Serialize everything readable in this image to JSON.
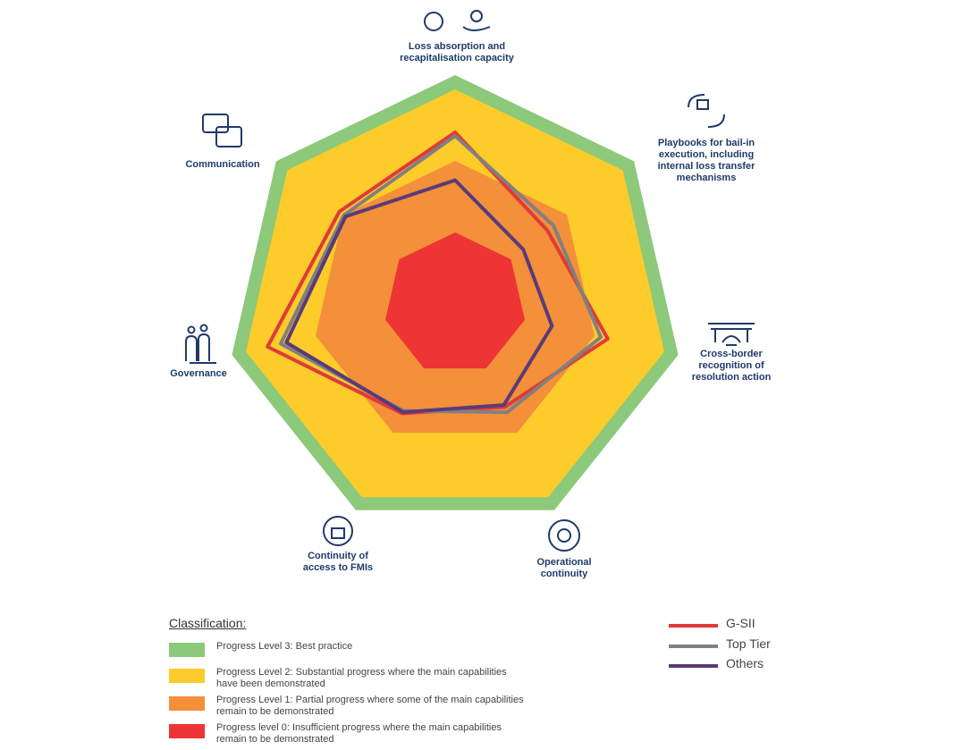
{
  "chart_data": {
    "type": "radar",
    "categories": [
      "Loss absorption and recapitalisation capacity",
      "Playbooks for bail-in execution, including internal loss transfer mechanisms",
      "Cross-border recognition of resolution action",
      "Operational continuity",
      "Continuity of access to FMIs",
      "Governance",
      "Communication"
    ],
    "rlim": [
      0,
      3.2
    ],
    "legend_title": "Classification:",
    "bands": [
      {
        "name": "Progress Level 3: Best practice",
        "color": "#8cc97a",
        "outer": 3.2
      },
      {
        "name": "Progress Level 2: Substantial progress where the main capabilities have been demonstrated",
        "color": "#fdcb2a",
        "outer": 3
      },
      {
        "name": "Progress Level 1: Partial progress where some of the main capabilities remain to be demonstrated",
        "color": "#f48f3a",
        "outer": 2
      },
      {
        "name": "Progress level 0: Insufficient progress where the main capabilities remain to be demonstrated",
        "color": "#ee3434",
        "outer": 1
      }
    ],
    "series": [
      {
        "name": "G-SII",
        "color": "#e03a3a",
        "values": [
          2.4,
          1.65,
          2.19,
          1.6,
          1.7,
          2.69,
          2.07
        ]
      },
      {
        "name": "Top Tier",
        "color": "#808080",
        "values": [
          2.35,
          1.76,
          2.09,
          1.68,
          1.66,
          2.5,
          1.99
        ]
      },
      {
        "name": "Others",
        "color": "#5a3a7a",
        "values": [
          1.73,
          1.22,
          1.39,
          1.57,
          1.68,
          2.42,
          1.96
        ]
      }
    ]
  }
}
